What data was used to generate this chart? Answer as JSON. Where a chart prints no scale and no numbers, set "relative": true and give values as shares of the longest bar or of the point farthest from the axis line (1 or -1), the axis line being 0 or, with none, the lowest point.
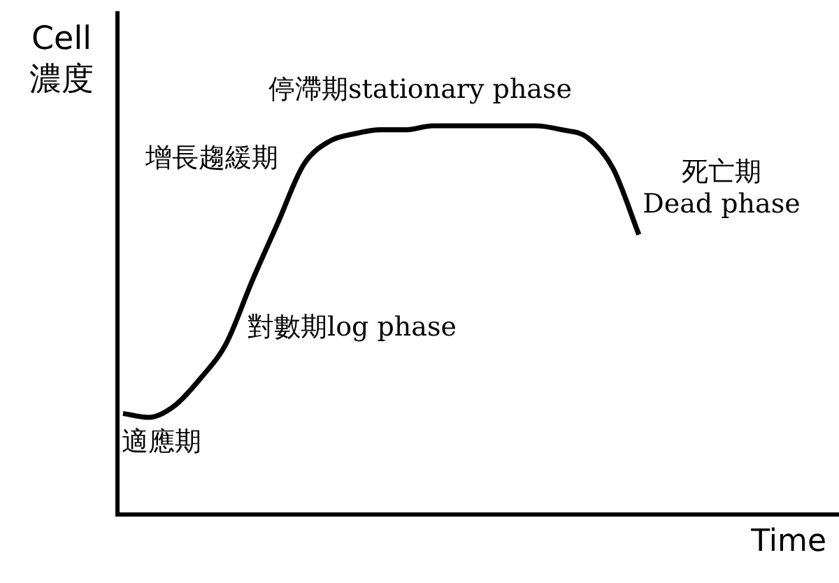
{
  "chart_data": {
    "type": "line",
    "relative": true,
    "ylabel": "Cell\n濃度",
    "xlabel": "Time",
    "categories": [
      null,
      null,
      null,
      null,
      null,
      null,
      null,
      null,
      null,
      null,
      null,
      null,
      null,
      null,
      null,
      null,
      null,
      null,
      null,
      null,
      null,
      null,
      null,
      null,
      null,
      null,
      null,
      null
    ],
    "values": [
      0.26,
      0.25,
      0.28,
      0.35,
      0.44,
      0.6,
      0.75,
      0.9,
      0.96,
      0.98,
      0.99,
      0.99,
      1.0,
      1.0,
      1.0,
      1.0,
      1.0,
      0.99,
      0.97,
      0.89,
      0.72,
      null,
      null,
      null,
      null,
      null,
      null,
      null
    ],
    "color": "#000000",
    "annotations": [
      "停滯期stationary phase",
      "增長趨緩期",
      "死亡期\nDead phase",
      "對數期log phase",
      "適應期"
    ]
  }
}
